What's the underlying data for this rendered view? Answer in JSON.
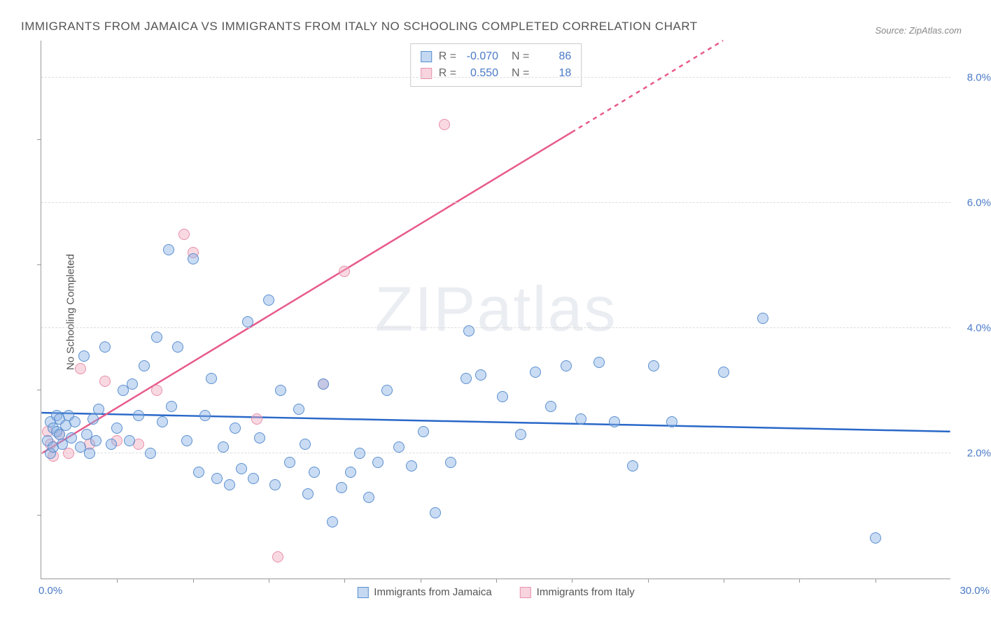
{
  "title": "IMMIGRANTS FROM JAMAICA VS IMMIGRANTS FROM ITALY NO SCHOOLING COMPLETED CORRELATION CHART",
  "source": "Source: ZipAtlas.com",
  "ylabel": "No Schooling Completed",
  "watermark": "ZIPatlas",
  "chart": {
    "type": "scatter-correlation",
    "xlim": [
      0,
      30
    ],
    "ylim": [
      0,
      8.6
    ],
    "x_min_label": "0.0%",
    "x_max_label": "30.0%",
    "y_grid_values": [
      2.0,
      4.0,
      6.0,
      8.0
    ],
    "y_grid_labels": [
      "2.0%",
      "4.0%",
      "6.0%",
      "8.0%"
    ],
    "x_tick_values": [
      2.5,
      5,
      7.5,
      10,
      12.5,
      15,
      17.5,
      20,
      22.5,
      25,
      27.5
    ],
    "y_tick_values": [
      1,
      3,
      5,
      7
    ],
    "background_color": "#ffffff",
    "grid_color": "#dddddd",
    "axis_color": "#999999",
    "label_color": "#4a7ac7",
    "point_radius": 8,
    "series_a": {
      "label": "Immigrants from Jamaica",
      "color_fill": "rgba(137,178,228,0.45)",
      "color_stroke": "#5a8fd0",
      "trend_color": "#2968c8",
      "R": "-0.070",
      "N": "86",
      "trend": {
        "x1": 0,
        "y1": 2.65,
        "x2": 30,
        "y2": 2.35
      },
      "points": [
        [
          0.2,
          2.2
        ],
        [
          0.3,
          2.0
        ],
        [
          0.3,
          2.5
        ],
        [
          0.4,
          2.1
        ],
        [
          0.4,
          2.4
        ],
        [
          0.5,
          2.6
        ],
        [
          0.5,
          2.35
        ],
        [
          0.6,
          2.3
        ],
        [
          0.6,
          2.55
        ],
        [
          0.7,
          2.15
        ],
        [
          0.8,
          2.45
        ],
        [
          0.9,
          2.6
        ],
        [
          1.0,
          2.25
        ],
        [
          1.1,
          2.5
        ],
        [
          1.3,
          2.1
        ],
        [
          1.4,
          3.55
        ],
        [
          1.5,
          2.3
        ],
        [
          1.6,
          2.0
        ],
        [
          1.7,
          2.55
        ],
        [
          1.8,
          2.2
        ],
        [
          1.9,
          2.7
        ],
        [
          2.1,
          3.7
        ],
        [
          2.3,
          2.15
        ],
        [
          2.5,
          2.4
        ],
        [
          2.7,
          3.0
        ],
        [
          2.9,
          2.2
        ],
        [
          3.0,
          3.1
        ],
        [
          3.2,
          2.6
        ],
        [
          3.4,
          3.4
        ],
        [
          3.6,
          2.0
        ],
        [
          3.8,
          3.85
        ],
        [
          4.0,
          2.5
        ],
        [
          4.3,
          2.75
        ],
        [
          4.5,
          3.7
        ],
        [
          4.8,
          2.2
        ],
        [
          5.0,
          5.1
        ],
        [
          5.2,
          1.7
        ],
        [
          5.4,
          2.6
        ],
        [
          5.6,
          3.2
        ],
        [
          5.8,
          1.6
        ],
        [
          6.0,
          2.1
        ],
        [
          6.2,
          1.5
        ],
        [
          6.4,
          2.4
        ],
        [
          6.6,
          1.75
        ],
        [
          6.8,
          4.1
        ],
        [
          7.0,
          1.6
        ],
        [
          7.2,
          2.25
        ],
        [
          7.5,
          4.45
        ],
        [
          7.7,
          1.5
        ],
        [
          7.9,
          3.0
        ],
        [
          8.2,
          1.85
        ],
        [
          8.5,
          2.7
        ],
        [
          8.8,
          1.35
        ],
        [
          9.0,
          1.7
        ],
        [
          9.3,
          3.1
        ],
        [
          9.6,
          0.9
        ],
        [
          9.9,
          1.45
        ],
        [
          10.2,
          1.7
        ],
        [
          10.5,
          2.0
        ],
        [
          10.8,
          1.3
        ],
        [
          11.1,
          1.85
        ],
        [
          11.4,
          3.0
        ],
        [
          11.8,
          2.1
        ],
        [
          12.2,
          1.8
        ],
        [
          12.6,
          2.35
        ],
        [
          13.0,
          1.05
        ],
        [
          13.5,
          1.85
        ],
        [
          14.0,
          3.2
        ],
        [
          14.1,
          3.95
        ],
        [
          14.5,
          3.25
        ],
        [
          15.2,
          2.9
        ],
        [
          15.8,
          2.3
        ],
        [
          16.3,
          3.3
        ],
        [
          16.8,
          2.75
        ],
        [
          17.3,
          3.4
        ],
        [
          17.8,
          2.55
        ],
        [
          18.4,
          3.45
        ],
        [
          18.9,
          2.5
        ],
        [
          19.5,
          1.8
        ],
        [
          20.2,
          3.4
        ],
        [
          20.8,
          2.5
        ],
        [
          22.5,
          3.3
        ],
        [
          23.8,
          4.15
        ],
        [
          27.5,
          0.65
        ],
        [
          8.7,
          2.15
        ],
        [
          4.2,
          5.25
        ]
      ]
    },
    "series_b": {
      "label": "Immigrants from Italy",
      "color_fill": "rgba(240,170,190,0.45)",
      "color_stroke": "#e890aa",
      "trend_color": "#e75a8c",
      "R": "0.550",
      "N": "18",
      "trend": {
        "x1": 0,
        "y1": 2.0,
        "x2": 22.5,
        "y2": 8.6
      },
      "trend_dash_after_x": 17.5,
      "points": [
        [
          0.2,
          2.35
        ],
        [
          0.3,
          2.15
        ],
        [
          0.4,
          1.95
        ],
        [
          0.6,
          2.3
        ],
        [
          0.9,
          2.0
        ],
        [
          1.3,
          3.35
        ],
        [
          1.6,
          2.15
        ],
        [
          2.1,
          3.15
        ],
        [
          2.5,
          2.2
        ],
        [
          3.2,
          2.15
        ],
        [
          3.8,
          3.0
        ],
        [
          4.7,
          5.5
        ],
        [
          5.0,
          5.2
        ],
        [
          7.1,
          2.55
        ],
        [
          7.8,
          0.35
        ],
        [
          9.3,
          3.1
        ],
        [
          10.0,
          4.9
        ],
        [
          13.3,
          7.25
        ]
      ]
    }
  },
  "stats_box": {
    "rows": [
      {
        "swatch": "a",
        "R": "-0.070",
        "N": "86"
      },
      {
        "swatch": "b",
        "R": "0.550",
        "N": "18"
      }
    ]
  },
  "bottom_legend": [
    {
      "swatch": "a",
      "label": "Immigrants from Jamaica"
    },
    {
      "swatch": "b",
      "label": "Immigrants from Italy"
    }
  ]
}
